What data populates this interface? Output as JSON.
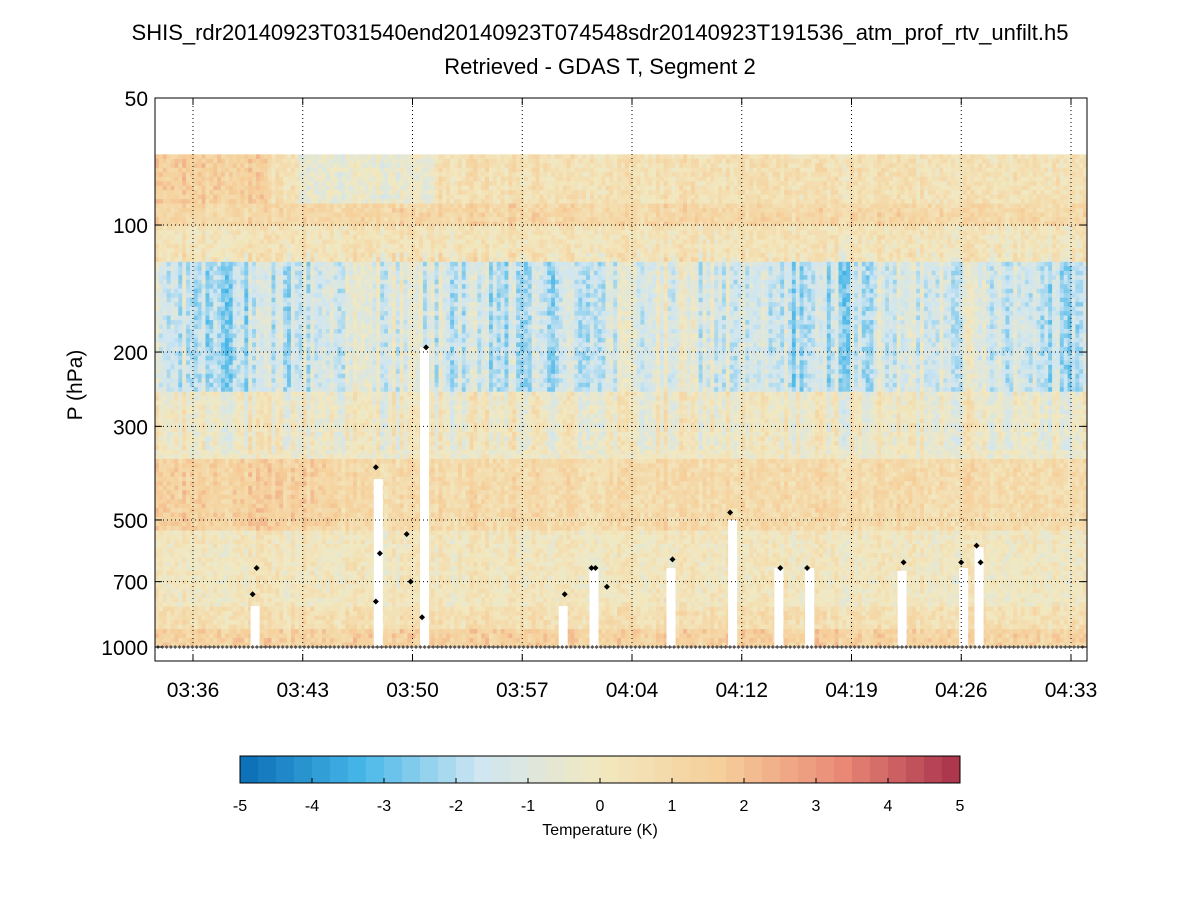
{
  "figure": {
    "title_line1": "SHIS_rdr20140923T031540end20140923T074548sdr20140923T191536_atm_prof_rtv_unfilt.h5",
    "title_line2": "Retrieved - GDAS T, Segment 2"
  },
  "chart_data": {
    "type": "heatmap",
    "title": "Retrieved - GDAS T, Segment 2",
    "xlabel": "",
    "ylabel": "P (hPa)",
    "x_ticks": [
      "03:36",
      "03:43",
      "03:50",
      "03:57",
      "04:04",
      "04:12",
      "04:19",
      "04:26",
      "04:33"
    ],
    "y_axis": {
      "scale": "log",
      "reversed": true,
      "range": [
        50,
        1100
      ],
      "ticks": [
        50,
        100,
        200,
        300,
        500,
        700,
        1000
      ]
    },
    "grid": "dotted",
    "colorbar": {
      "label": "Temperature (K)",
      "range": [
        -5,
        5
      ],
      "ticks": [
        -5,
        -4,
        -3,
        -2,
        -1,
        0,
        1,
        2,
        3,
        4,
        5
      ],
      "colors": [
        "#0a6cb4",
        "#45b6e8",
        "#cfe6f2",
        "#f2e8c0",
        "#f6cf9a",
        "#ea8a76",
        "#a8304a"
      ]
    },
    "data_top_pressure": 68,
    "surface_pressure": 1000,
    "cloud_markers_hpa": [
      {
        "time": "03:40",
        "p": 750
      },
      {
        "time": "03:40",
        "p": 650
      },
      {
        "time": "03:48",
        "p": 375
      },
      {
        "time": "03:48",
        "p": 600
      },
      {
        "time": "03:48",
        "p": 780
      },
      {
        "time": "03:50",
        "p": 700
      },
      {
        "time": "03:50",
        "p": 540
      },
      {
        "time": "03:51",
        "p": 195
      },
      {
        "time": "03:51",
        "p": 850
      },
      {
        "time": "04:00",
        "p": 750
      },
      {
        "time": "04:02",
        "p": 650
      },
      {
        "time": "04:02",
        "p": 650
      },
      {
        "time": "04:03",
        "p": 720
      },
      {
        "time": "04:07",
        "p": 620
      },
      {
        "time": "04:11",
        "p": 480
      },
      {
        "time": "04:14",
        "p": 650
      },
      {
        "time": "04:16",
        "p": 650
      },
      {
        "time": "04:22",
        "p": 630
      },
      {
        "time": "04:26",
        "p": 630
      },
      {
        "time": "04:27",
        "p": 630
      },
      {
        "time": "04:27",
        "p": 575
      }
    ],
    "cloud_gaps": [
      {
        "time": "03:40",
        "top_p": 800
      },
      {
        "time": "03:48",
        "top_p": 400
      },
      {
        "time": "03:51",
        "top_p": 195
      },
      {
        "time": "04:00",
        "top_p": 800
      },
      {
        "time": "04:02",
        "top_p": 650
      },
      {
        "time": "04:07",
        "top_p": 650
      },
      {
        "time": "04:11",
        "top_p": 500
      },
      {
        "time": "04:14",
        "top_p": 650
      },
      {
        "time": "04:16",
        "top_p": 650
      },
      {
        "time": "04:22",
        "top_p": 660
      },
      {
        "time": "04:26",
        "top_p": 650
      },
      {
        "time": "04:27",
        "top_p": 580
      }
    ]
  },
  "colors": {
    "axis": "#000000",
    "grid": "#000000",
    "marker": "#000000",
    "surface_marker": "#555555"
  }
}
